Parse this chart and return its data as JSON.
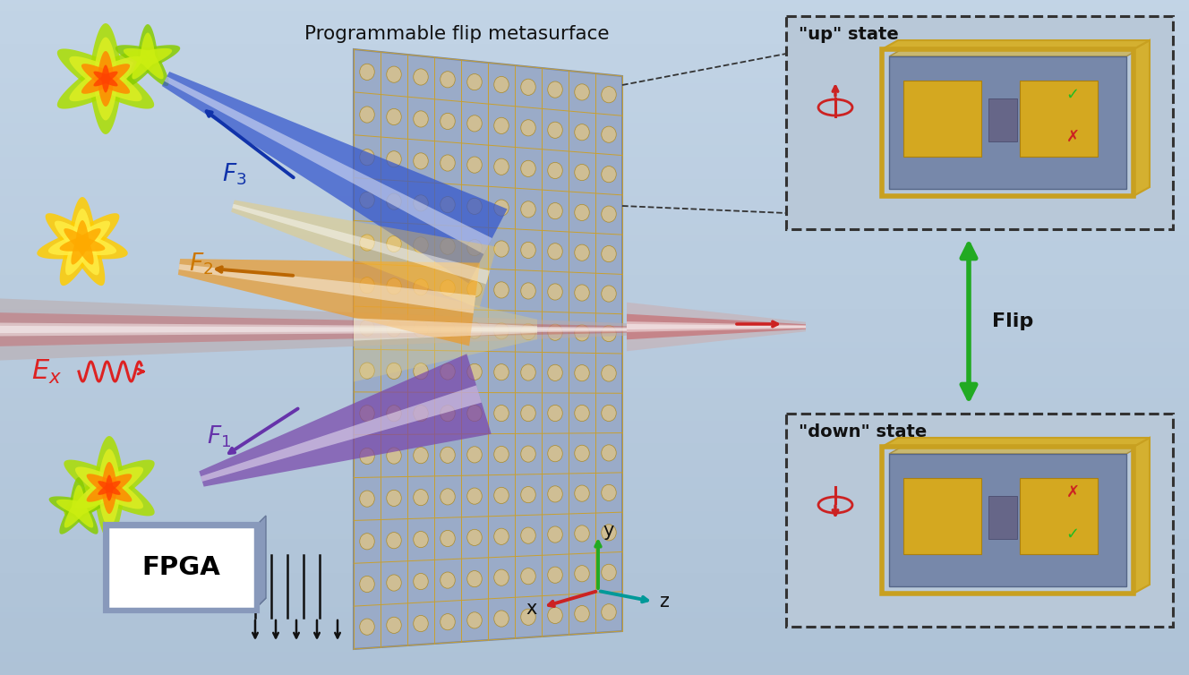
{
  "title": "",
  "bg_color": "#b0c0d0",
  "main_label": "Programmable flip metasurface",
  "up_state_label": "\"up\" state",
  "down_state_label": "\"down\" state",
  "flip_label": "Flip",
  "fpga_label": "FPGA",
  "ex_label": "E_x",
  "f1_label": "F_1",
  "f2_label": "F_2",
  "f3_label": "F_3",
  "axis_labels": [
    "x",
    "y",
    "z"
  ],
  "metasurface_color": "#9aabcc",
  "metasurface_frame_color": "#c8a830",
  "beam_incident_color": "#cc4444",
  "beam_f1_color": "#7744aa",
  "beam_f2_color": "#dd8822",
  "beam_f3_color": "#3355cc",
  "green_arrow_color": "#22bb22",
  "red_arrow_color": "#cc2222",
  "dashed_line_color": "#333333",
  "gold_color": "#d4a820",
  "teal_color": "#009999"
}
